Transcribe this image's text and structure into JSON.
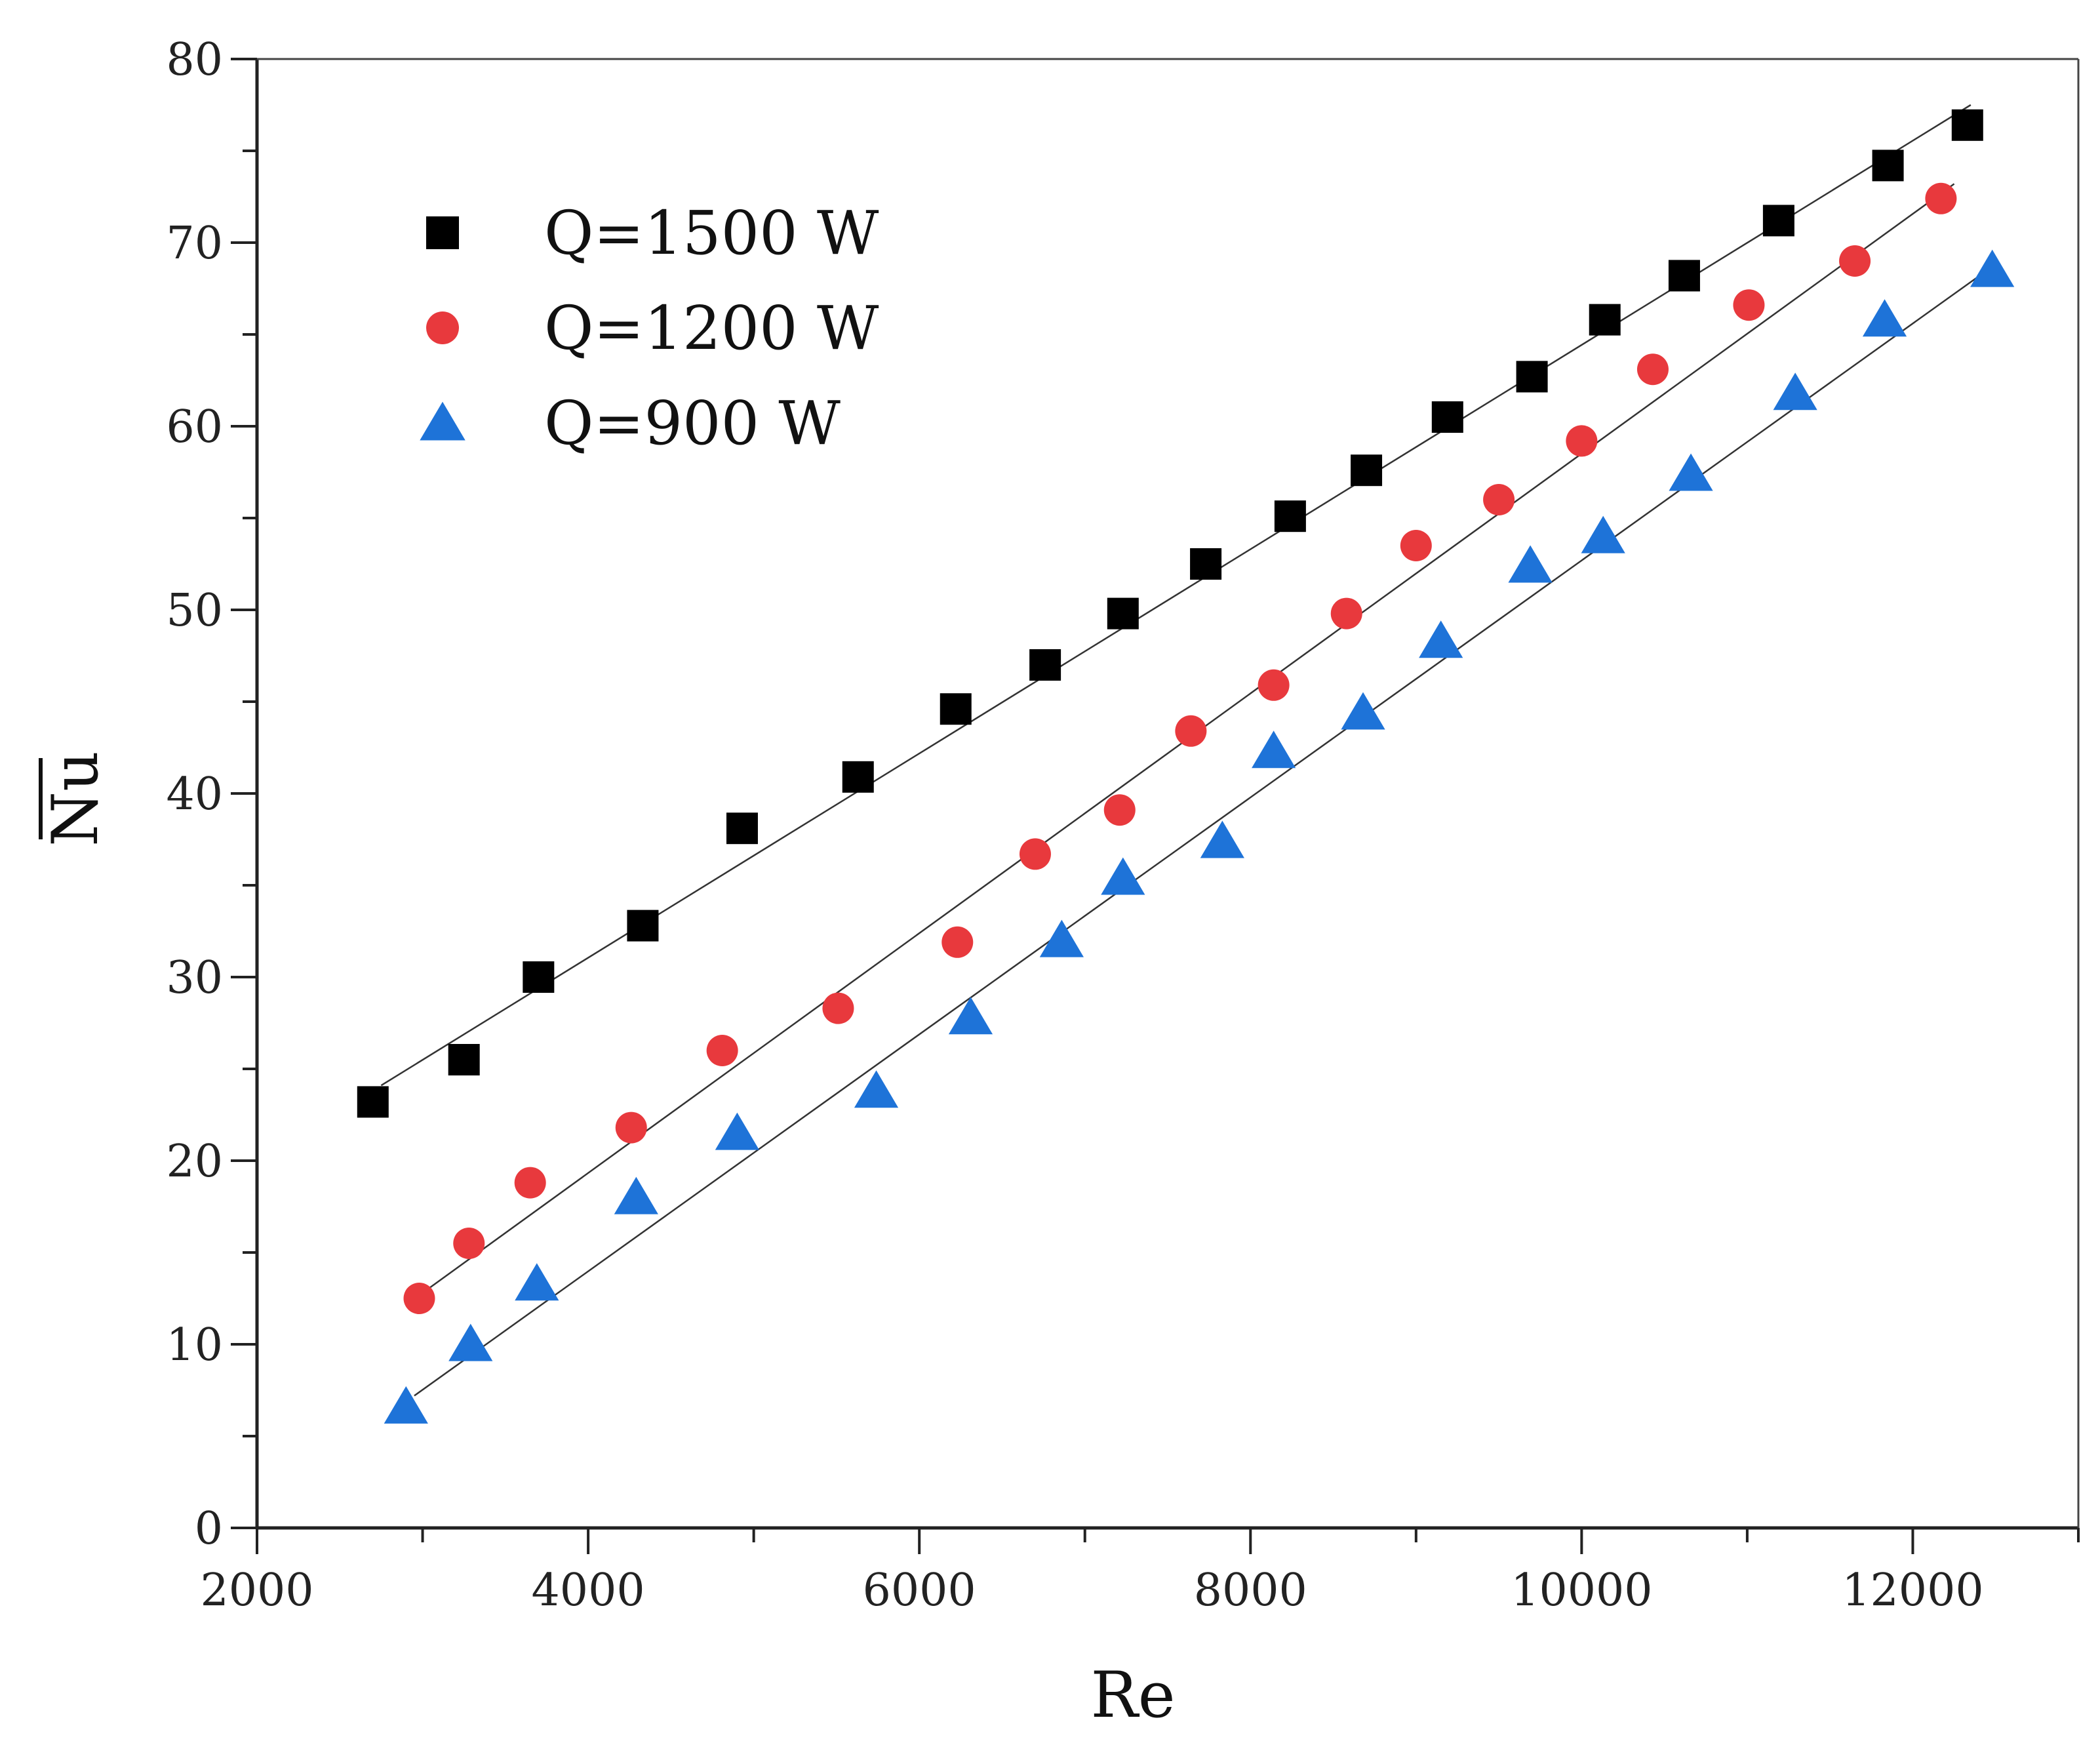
{
  "chart_data": {
    "type": "scatter",
    "title": "",
    "xlabel": "Re",
    "ylabel": "Nu",
    "ylabel_overline": true,
    "xlim": [
      2000,
      13000
    ],
    "ylim": [
      0,
      80
    ],
    "xticks": [
      2000,
      4000,
      6000,
      8000,
      10000,
      12000
    ],
    "yticks": [
      0,
      10,
      20,
      30,
      40,
      50,
      60,
      70,
      80
    ],
    "x_minor_step": 1000,
    "y_minor_step": 5,
    "grid": false,
    "legend_position": "top-left",
    "series": [
      {
        "name": "Q=1500 W",
        "marker": "square",
        "color": "#000000",
        "points": [
          [
            2700,
            23.2
          ],
          [
            3250,
            25.5
          ],
          [
            3700,
            30.0
          ],
          [
            4330,
            32.8
          ],
          [
            4930,
            38.1
          ],
          [
            5630,
            40.9
          ],
          [
            6220,
            44.6
          ],
          [
            6760,
            47.0
          ],
          [
            7230,
            49.8
          ],
          [
            7730,
            52.5
          ],
          [
            8240,
            55.1
          ],
          [
            8700,
            57.6
          ],
          [
            9190,
            60.5
          ],
          [
            9700,
            62.7
          ],
          [
            10140,
            65.8
          ],
          [
            10620,
            68.2
          ],
          [
            11190,
            71.2
          ],
          [
            11850,
            74.2
          ],
          [
            12330,
            76.4
          ]
        ],
        "fit": [
          [
            2750,
            24.1
          ],
          [
            12350,
            77.5
          ]
        ]
      },
      {
        "name": "Q=1200 W",
        "marker": "circle",
        "color": "#e8393d",
        "points": [
          [
            2980,
            12.5
          ],
          [
            3280,
            15.5
          ],
          [
            3650,
            18.8
          ],
          [
            4260,
            21.8
          ],
          [
            4810,
            26.0
          ],
          [
            5510,
            28.3
          ],
          [
            6230,
            31.9
          ],
          [
            6700,
            36.7
          ],
          [
            7210,
            39.1
          ],
          [
            7640,
            43.4
          ],
          [
            8140,
            45.9
          ],
          [
            8580,
            49.8
          ],
          [
            9000,
            53.5
          ],
          [
            9500,
            56.0
          ],
          [
            10000,
            59.2
          ],
          [
            10430,
            63.1
          ],
          [
            11010,
            66.6
          ],
          [
            11650,
            69.0
          ],
          [
            12170,
            72.4
          ]
        ],
        "fit": [
          [
            3000,
            12.8
          ],
          [
            12250,
            73.2
          ]
        ]
      },
      {
        "name": "Q=900 W",
        "marker": "triangle",
        "color": "#1e73d8",
        "points": [
          [
            2900,
            6.6
          ],
          [
            3290,
            10.0
          ],
          [
            3690,
            13.3
          ],
          [
            4290,
            18.0
          ],
          [
            4900,
            21.5
          ],
          [
            5740,
            23.8
          ],
          [
            6310,
            27.8
          ],
          [
            6860,
            32.0
          ],
          [
            7230,
            35.4
          ],
          [
            7830,
            37.4
          ],
          [
            8140,
            42.3
          ],
          [
            8680,
            44.4
          ],
          [
            9150,
            48.3
          ],
          [
            9690,
            52.4
          ],
          [
            10130,
            54.0
          ],
          [
            10660,
            57.4
          ],
          [
            11290,
            61.8
          ],
          [
            11830,
            65.8
          ],
          [
            12480,
            68.5
          ]
        ],
        "fit": [
          [
            2950,
            7.2
          ],
          [
            12450,
            68.5
          ]
        ]
      }
    ]
  }
}
